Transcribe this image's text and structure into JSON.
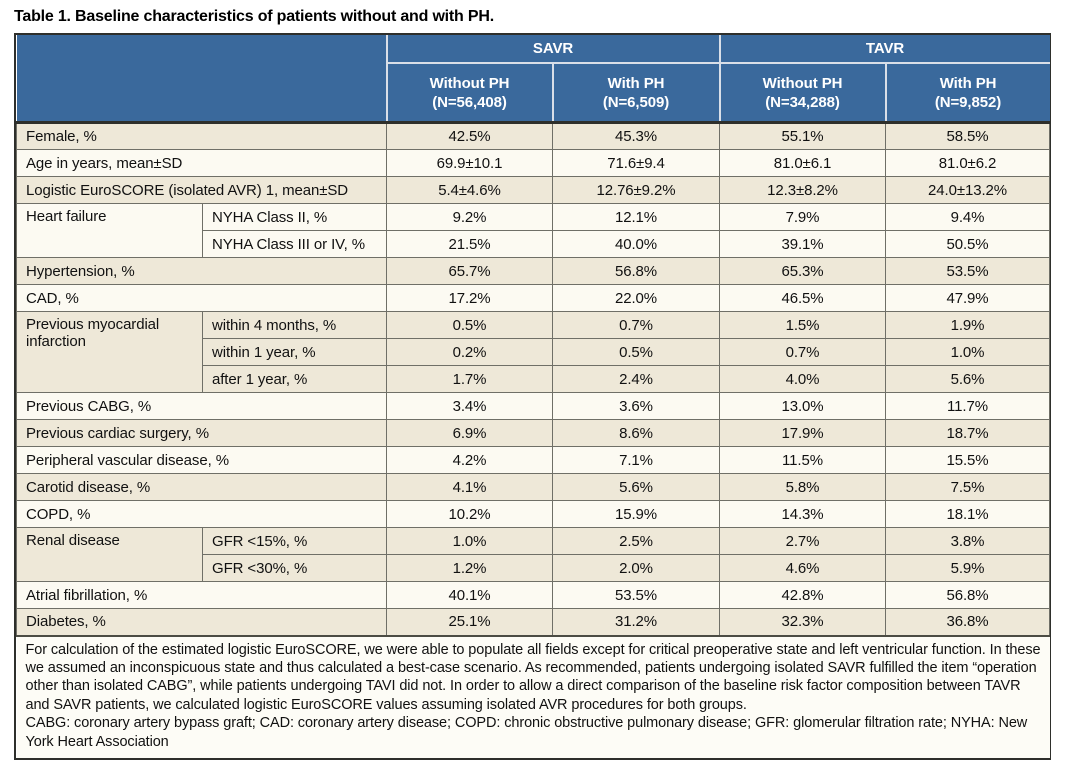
{
  "title": "Table 1. Baseline characteristics of patients without and with PH.",
  "colors": {
    "header_blue": "#3a699c",
    "header_text": "#ffffff",
    "row_cream": "#eee8d8",
    "row_white": "#fcfaf2",
    "grid_line": "#6f6f67",
    "outer_border": "#2e2f2b",
    "header_divider": "#d9dfe8"
  },
  "header": {
    "groups": [
      {
        "label": "SAVR"
      },
      {
        "label": "TAVR"
      }
    ],
    "columns": [
      {
        "label": "Without PH",
        "n": "(N=56,408)"
      },
      {
        "label": "With PH",
        "n": "(N=6,509)"
      },
      {
        "label": "Without PH",
        "n": "(N=34,288)"
      },
      {
        "label": "With PH",
        "n": "(N=9,852)"
      }
    ]
  },
  "rows": [
    {
      "label": "Female, %",
      "values": [
        "42.5%",
        "45.3%",
        "55.1%",
        "58.5%"
      ],
      "bg": "cream"
    },
    {
      "label": "Age in years, mean±SD",
      "values": [
        "69.9±10.1",
        "71.6±9.4",
        "81.0±6.1",
        "81.0±6.2"
      ],
      "bg": "white"
    },
    {
      "label": "Logistic EuroSCORE (isolated AVR) 1, mean±SD",
      "values": [
        "5.4±4.6%",
        "12.76±9.2%",
        "12.3±8.2%",
        "24.0±13.2%"
      ],
      "bg": "cream"
    },
    {
      "group": "Heart failure",
      "group_rows": 2,
      "sub": "NYHA Class II, %",
      "values": [
        "9.2%",
        "12.1%",
        "7.9%",
        "9.4%"
      ],
      "bg": "white"
    },
    {
      "sub": "NYHA Class III or IV, %",
      "values": [
        "21.5%",
        "40.0%",
        "39.1%",
        "50.5%"
      ],
      "bg": "white"
    },
    {
      "label": "Hypertension, %",
      "values": [
        "65.7%",
        "56.8%",
        "65.3%",
        "53.5%"
      ],
      "bg": "cream"
    },
    {
      "label": "CAD, %",
      "values": [
        "17.2%",
        "22.0%",
        "46.5%",
        "47.9%"
      ],
      "bg": "white"
    },
    {
      "group": "Previous myocardial infarction",
      "group_rows": 3,
      "sub": "within 4 months, %",
      "values": [
        "0.5%",
        "0.7%",
        "1.5%",
        "1.9%"
      ],
      "bg": "cream"
    },
    {
      "sub": "within 1 year, %",
      "values": [
        "0.2%",
        "0.5%",
        "0.7%",
        "1.0%"
      ],
      "bg": "cream"
    },
    {
      "sub": "after 1 year, %",
      "values": [
        "1.7%",
        "2.4%",
        "4.0%",
        "5.6%"
      ],
      "bg": "cream"
    },
    {
      "label": "Previous CABG, %",
      "values": [
        "3.4%",
        "3.6%",
        "13.0%",
        "11.7%"
      ],
      "bg": "white"
    },
    {
      "label": "Previous cardiac surgery, %",
      "values": [
        "6.9%",
        "8.6%",
        "17.9%",
        "18.7%"
      ],
      "bg": "cream"
    },
    {
      "label": "Peripheral vascular disease, %",
      "values": [
        "4.2%",
        "7.1%",
        "11.5%",
        "15.5%"
      ],
      "bg": "white"
    },
    {
      "label": "Carotid disease, %",
      "values": [
        "4.1%",
        "5.6%",
        "5.8%",
        "7.5%"
      ],
      "bg": "cream"
    },
    {
      "label": "COPD, %",
      "values": [
        "10.2%",
        "15.9%",
        "14.3%",
        "18.1%"
      ],
      "bg": "white"
    },
    {
      "group": "Renal disease",
      "group_rows": 2,
      "sub": "GFR <15%, %",
      "values": [
        "1.0%",
        "2.5%",
        "2.7%",
        "3.8%"
      ],
      "bg": "cream"
    },
    {
      "sub": "GFR <30%, %",
      "values": [
        "1.2%",
        "2.0%",
        "4.6%",
        "5.9%"
      ],
      "bg": "cream"
    },
    {
      "label": "Atrial fibrillation, %",
      "values": [
        "40.1%",
        "53.5%",
        "42.8%",
        "56.8%"
      ],
      "bg": "white"
    },
    {
      "label": "Diabetes, %",
      "values": [
        "25.1%",
        "31.2%",
        "32.3%",
        "36.8%"
      ],
      "bg": "cream"
    }
  ],
  "footnote": {
    "note": "For calculation of the estimated logistic EuroSCORE, we were able to populate all fields except for critical preoperative state and left ventricular function. In these we assumed an inconspicuous state and thus calculated a best-case scenario. As recommended, patients undergoing isolated SAVR fulfilled the item “operation other than isolated CABG”, while patients undergoing TAVI did not. In order to allow a direct comparison of the baseline risk factor composition between TAVR and SAVR patients, we calculated logistic EuroSCORE values assuming isolated AVR procedures for both groups.",
    "abbreviations": "CABG: coronary artery bypass graft; CAD: coronary artery disease; COPD: chronic obstructive pulmonary disease; GFR: glomerular filtration rate; NYHA: New York Heart Association"
  }
}
